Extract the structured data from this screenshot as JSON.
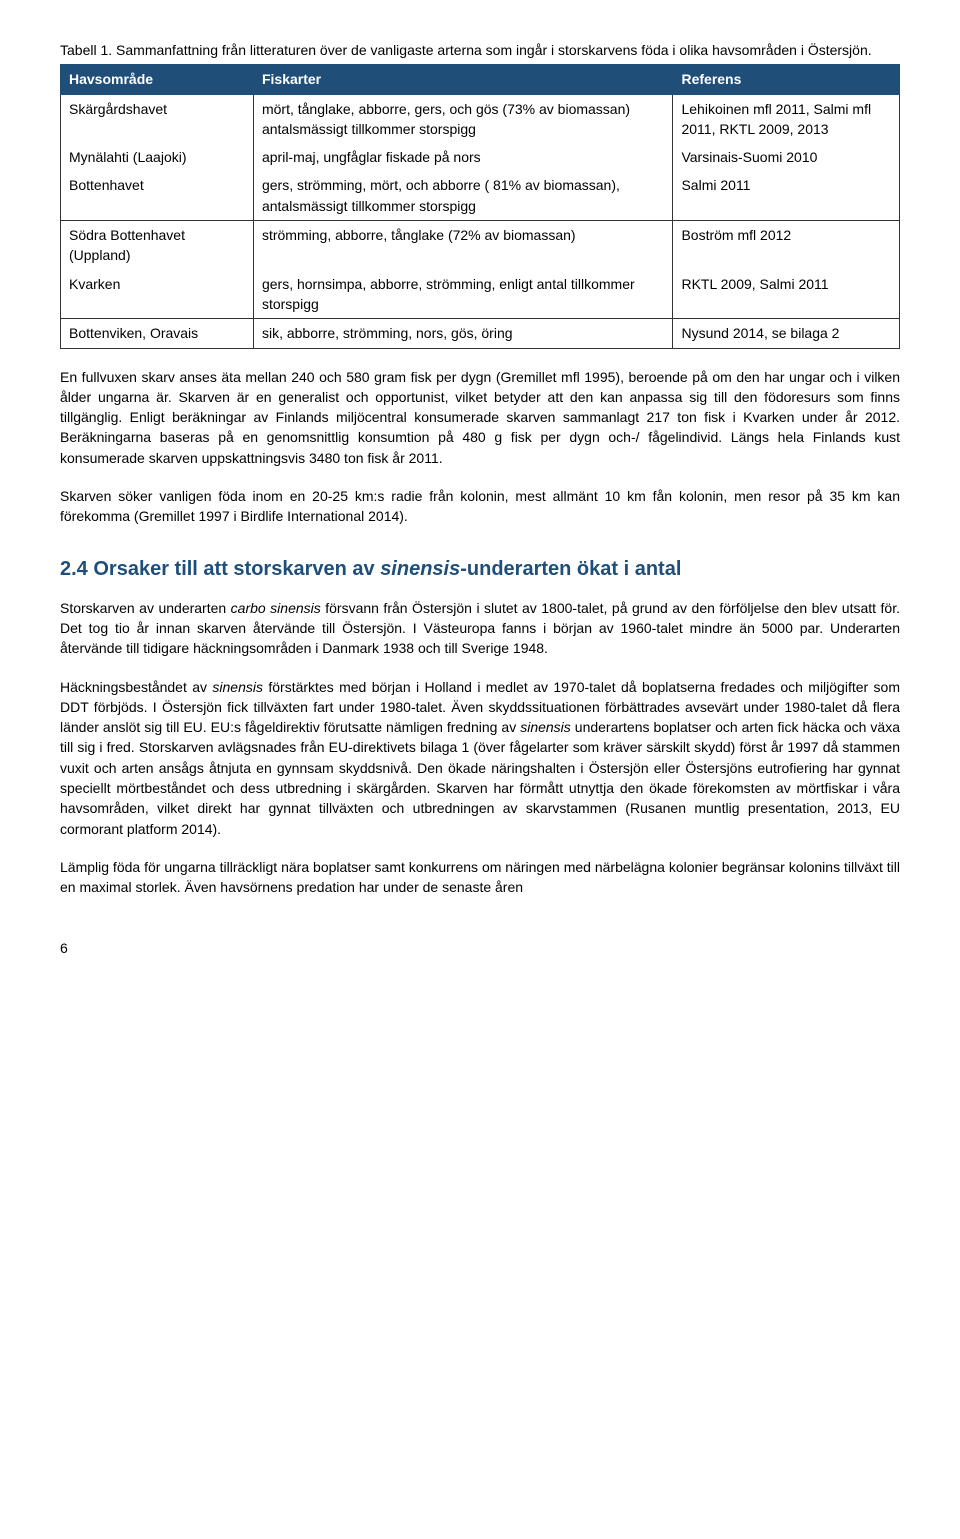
{
  "caption": "Tabell 1. Sammanfattning från litteraturen över de vanligaste arterna som ingår i storskarvens föda i olika havsområden i Östersjön.",
  "table": {
    "headers": [
      "Havsområde",
      "Fiskarter",
      "Referens"
    ],
    "rows_g1": [
      {
        "a": "Skärgårdshavet",
        "b": "mört, tånglake, abborre, gers, och gös (73% av biomassan) antalsmässigt tillkommer storspigg",
        "c": "Lehikoinen mfl 2011, Salmi mfl 2011, RKTL 2009, 2013"
      },
      {
        "a": "Mynälahti (Laajoki)",
        "b": "april-maj, ungfåglar fiskade på nors",
        "c": "Varsinais-Suomi 2010"
      },
      {
        "a": "Bottenhavet",
        "b": "gers, strömming, mört, och abborre ( 81% av biomassan), antalsmässigt tillkommer storspigg",
        "c": "Salmi 2011"
      }
    ],
    "rows_g2": [
      {
        "a": "Södra Bottenhavet (Uppland)",
        "b": "strömming, abborre, tånglake (72% av biomassan)",
        "c": "Boström mfl 2012"
      },
      {
        "a": "Kvarken",
        "b": "gers, hornsimpa, abborre, strömming, enligt antal tillkommer storspigg",
        "c": "RKTL 2009, Salmi 2011"
      }
    ],
    "rows_g3": [
      {
        "a": "Bottenviken, Oravais",
        "b": "sik, abborre, strömming, nors, gös, öring",
        "c": "Nysund 2014, se bilaga 2"
      }
    ]
  },
  "para1": "En fullvuxen skarv anses äta mellan 240 och 580 gram fisk per dygn (Gremillet mfl 1995), beroende på om den har ungar och i vilken ålder ungarna är. Skarven är en generalist och opportunist, vilket betyder att den kan anpassa sig till den födoresurs som finns tillgänglig. Enligt beräkningar av Finlands miljöcentral konsumerade skarven sammanlagt 217 ton fisk i Kvarken under år 2012. Beräkningarna baseras på en genomsnittlig konsumtion på 480 g fisk per dygn och-/ fågelindivid. Längs hela Finlands kust konsumerade skarven uppskattningsvis 3480 ton fisk år 2011.",
  "para2": "Skarven söker vanligen föda inom en 20-25 km:s radie från kolonin, mest allmänt 10 km fån kolonin, men resor på 35 km kan förekomma (Gremillet 1997 i Birdlife International 2014).",
  "heading_prefix": "2.4 Orsaker till att storskarven av ",
  "heading_italic": "sinensis",
  "heading_suffix": "-underarten ökat i antal",
  "para3_a": "Storskarven av underarten ",
  "para3_i1": "carbo sinensis",
  "para3_b": " försvann från Östersjön i slutet av 1800-talet, på grund av den förföljelse den blev utsatt för.  Det tog tio år innan skarven återvände till Östersjön. I Västeuropa fanns i början av 1960-talet mindre än 5000 par. Underarten återvände till tidigare häckningsområden i Danmark 1938 och till Sverige 1948.",
  "para4_a": "Häckningsbeståndet av ",
  "para4_i1": "sinensis",
  "para4_b": " förstärktes med början i Holland i medlet av 1970-talet då boplatserna fredades och miljögifter som DDT förbjöds. I Östersjön fick tillväxten fart under 1980-talet. Även skyddssituationen förbättrades avsevärt under 1980-talet då flera länder anslöt sig till EU. EU:s fågeldirektiv förutsatte nämligen fredning av ",
  "para4_i2": "sinensis",
  "para4_c": " underartens boplatser och arten fick häcka och växa till sig i fred. Storskarven avlägsnades från EU-direktivets bilaga 1 (över fågelarter som kräver särskilt skydd) först år 1997 då stammen vuxit och arten ansågs åtnjuta en gynnsam skyddsnivå. Den ökade näringshalten i Östersjön eller Östersjöns eutrofiering har gynnat speciellt mörtbeståndet och dess utbredning i skärgården. Skarven har förmått utnyttja den ökade förekomsten av mörtfiskar i våra havsområden, vilket direkt har gynnat tillväxten och utbredningen av skarvstammen (Rusanen muntlig presentation, 2013, EU cormorant platform 2014).",
  "para5": "Lämplig föda för ungarna tillräckligt nära boplatser samt konkurrens om näringen med närbelägna kolonier begränsar kolonins tillväxt till en maximal storlek. Även havsörnens predation har under de senaste åren",
  "pagenum": "6"
}
